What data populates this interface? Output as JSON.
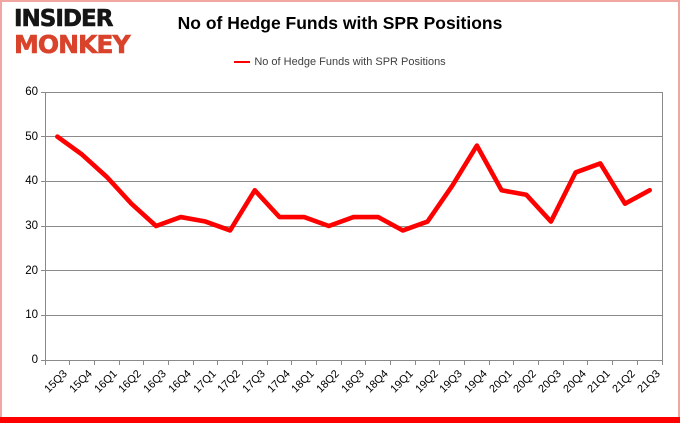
{
  "branding": {
    "insider": "INSIDER",
    "monkey": "MONKEY"
  },
  "header": {
    "title": "No of Hedge Funds with SPR Positions"
  },
  "legend": {
    "label": "No of Hedge Funds with SPR Positions"
  },
  "colors": {
    "series_red": "#ff0000",
    "logo_black": "#151515",
    "logo_red": "#d9432c",
    "frame_border_pink": "#f2a6a1",
    "bottom_bar_red": "#fe0000",
    "gridline_gray": "#8a8a8a",
    "axis_text": "#000000",
    "legend_text": "#404040"
  },
  "chart_data": {
    "type": "line",
    "title": "No of Hedge Funds with SPR Positions",
    "categories": [
      "15Q3",
      "15Q4",
      "16Q1",
      "16Q2",
      "16Q3",
      "16Q4",
      "17Q1",
      "17Q2",
      "17Q3",
      "17Q4",
      "18Q1",
      "18Q2",
      "18Q3",
      "18Q4",
      "19Q1",
      "19Q2",
      "19Q3",
      "19Q4",
      "20Q1",
      "20Q2",
      "20Q3",
      "20Q4",
      "21Q1",
      "21Q2",
      "21Q3"
    ],
    "series": [
      {
        "name": "No of Hedge Funds with SPR Positions",
        "color": "#ff0000",
        "values": [
          50,
          46,
          41,
          35,
          30,
          32,
          31,
          29,
          38,
          32,
          32,
          30,
          32,
          32,
          29,
          31,
          39,
          48,
          38,
          37,
          31,
          42,
          44,
          35,
          38
        ]
      }
    ],
    "ylim": [
      0,
      60
    ],
    "yticks": [
      0,
      10,
      20,
      30,
      40,
      50,
      60
    ],
    "grid": true,
    "legend_position": "top-center",
    "x_tick_rotation": -45
  }
}
